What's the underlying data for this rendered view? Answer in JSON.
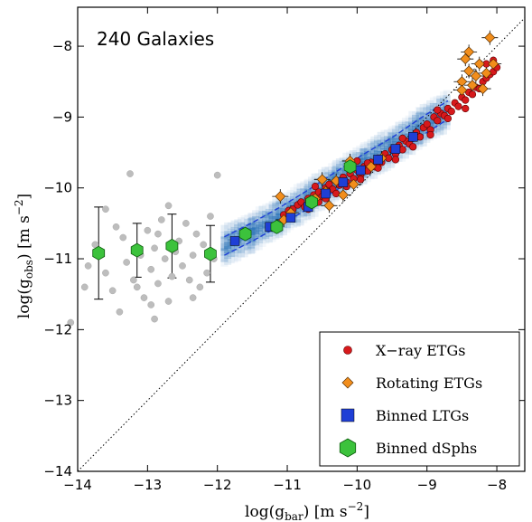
{
  "chart_data": {
    "type": "scatter",
    "annotation": "240 Galaxies",
    "xlabel": "log(g_bar) [m s^-2]",
    "ylabel": "log(g_obs) [m s^-2]",
    "xlim": [
      -14,
      -7.6
    ],
    "ylim": [
      -14,
      -7.45
    ],
    "x_ticks": [
      -14,
      -13,
      -12,
      -11,
      -10,
      -9,
      -8
    ],
    "y_ticks": [
      -14,
      -13,
      -12,
      -11,
      -10,
      -9,
      -8
    ],
    "x_tick_labels": [
      "−14",
      "−13",
      "−12",
      "−11",
      "−10",
      "−9",
      "−8"
    ],
    "y_tick_labels": [
      "−14",
      "−13",
      "−12",
      "−11",
      "−10",
      "−9",
      "−8"
    ],
    "legend_placement": "bottom-right",
    "one_to_one_line": true,
    "colors": {
      "xray": "#d7191c",
      "rotating": "#f28e1c",
      "binned_ltgs": "#1f3fd6",
      "dsphs": "#3cc23c",
      "individual_dsph": "#bdbdbd",
      "density": "#2d74b8"
    },
    "series": [
      {
        "name": "X−ray ETGs",
        "marker": "circle",
        "points": [
          [
            -11.05,
            -10.38
          ],
          [
            -10.98,
            -10.32
          ],
          [
            -10.92,
            -10.3
          ],
          [
            -10.85,
            -10.24
          ],
          [
            -10.8,
            -10.2
          ],
          [
            -10.75,
            -10.27
          ],
          [
            -10.7,
            -10.15
          ],
          [
            -10.62,
            -10.1
          ],
          [
            -10.55,
            -10.06
          ],
          [
            -10.5,
            -10.12
          ],
          [
            -10.45,
            -10.0
          ],
          [
            -10.4,
            -9.95
          ],
          [
            -10.35,
            -10.02
          ],
          [
            -10.3,
            -9.9
          ],
          [
            -10.25,
            -9.96
          ],
          [
            -10.2,
            -9.85
          ],
          [
            -10.15,
            -9.92
          ],
          [
            -10.1,
            -9.8
          ],
          [
            -10.05,
            -9.87
          ],
          [
            -10.0,
            -9.75
          ],
          [
            -9.95,
            -9.82
          ],
          [
            -9.9,
            -9.7
          ],
          [
            -9.85,
            -9.76
          ],
          [
            -9.8,
            -9.64
          ],
          [
            -9.75,
            -9.7
          ],
          [
            -9.7,
            -9.58
          ],
          [
            -9.65,
            -9.64
          ],
          [
            -9.6,
            -9.52
          ],
          [
            -9.55,
            -9.58
          ],
          [
            -9.5,
            -9.46
          ],
          [
            -9.45,
            -9.52
          ],
          [
            -9.4,
            -9.4
          ],
          [
            -9.35,
            -9.46
          ],
          [
            -9.3,
            -9.34
          ],
          [
            -9.25,
            -9.38
          ],
          [
            -9.2,
            -9.28
          ],
          [
            -9.15,
            -9.22
          ],
          [
            -9.1,
            -9.28
          ],
          [
            -9.05,
            -9.15
          ],
          [
            -9.0,
            -9.1
          ],
          [
            -8.95,
            -9.18
          ],
          [
            -8.9,
            -9.0
          ],
          [
            -8.85,
            -9.05
          ],
          [
            -8.8,
            -8.95
          ],
          [
            -8.75,
            -8.98
          ],
          [
            -8.7,
            -8.88
          ],
          [
            -8.65,
            -8.92
          ],
          [
            -8.6,
            -8.8
          ],
          [
            -8.55,
            -8.85
          ],
          [
            -8.5,
            -8.72
          ],
          [
            -8.45,
            -8.76
          ],
          [
            -8.4,
            -8.65
          ],
          [
            -8.35,
            -8.68
          ],
          [
            -8.3,
            -8.58
          ],
          [
            -8.25,
            -8.6
          ],
          [
            -8.2,
            -8.5
          ],
          [
            -8.15,
            -8.45
          ],
          [
            -8.1,
            -8.4
          ],
          [
            -8.05,
            -8.36
          ],
          [
            -8.0,
            -8.3
          ],
          [
            -10.55,
            -10.2
          ],
          [
            -10.3,
            -10.08
          ],
          [
            -10.15,
            -9.98
          ],
          [
            -9.95,
            -9.88
          ],
          [
            -9.7,
            -9.72
          ],
          [
            -9.45,
            -9.6
          ],
          [
            -9.2,
            -9.42
          ],
          [
            -8.95,
            -9.25
          ],
          [
            -8.7,
            -9.02
          ],
          [
            -8.45,
            -8.88
          ],
          [
            -10.7,
            -10.3
          ],
          [
            -10.45,
            -10.15
          ],
          [
            -9.85,
            -9.65
          ],
          [
            -9.35,
            -9.3
          ],
          [
            -8.85,
            -8.9
          ],
          [
            -8.35,
            -8.55
          ],
          [
            -8.15,
            -8.25
          ],
          [
            -8.05,
            -8.2
          ],
          [
            -10.6,
            -9.98
          ],
          [
            -10.0,
            -9.62
          ]
        ]
      },
      {
        "name": "Rotating ETGs",
        "marker": "diamond",
        "points": [
          [
            -11.1,
            -10.12
          ],
          [
            -11.05,
            -10.45
          ],
          [
            -10.95,
            -10.35
          ],
          [
            -10.6,
            -10.15
          ],
          [
            -10.5,
            -9.88
          ],
          [
            -10.45,
            -10.05
          ],
          [
            -10.4,
            -10.25
          ],
          [
            -10.3,
            -9.9
          ],
          [
            -10.2,
            -10.1
          ],
          [
            -10.1,
            -9.62
          ],
          [
            -10.05,
            -9.95
          ],
          [
            -9.8,
            -9.7
          ],
          [
            -9.65,
            -9.58
          ],
          [
            -8.5,
            -8.5
          ],
          [
            -8.4,
            -8.35
          ],
          [
            -8.35,
            -8.55
          ],
          [
            -8.3,
            -8.42
          ],
          [
            -8.25,
            -8.25
          ],
          [
            -8.4,
            -8.08
          ],
          [
            -8.15,
            -8.38
          ],
          [
            -8.05,
            -8.25
          ],
          [
            -8.1,
            -7.88
          ],
          [
            -8.5,
            -8.62
          ],
          [
            -8.2,
            -8.6
          ],
          [
            -8.45,
            -8.18
          ]
        ]
      },
      {
        "name": "Binned LTGs",
        "marker": "square",
        "points": [
          [
            -11.75,
            -10.75
          ],
          [
            -11.25,
            -10.55
          ],
          [
            -10.95,
            -10.42
          ],
          [
            -10.7,
            -10.27
          ],
          [
            -10.45,
            -10.08
          ],
          [
            -10.2,
            -9.92
          ],
          [
            -9.95,
            -9.75
          ],
          [
            -9.7,
            -9.6
          ],
          [
            -9.45,
            -9.45
          ],
          [
            -9.2,
            -9.28
          ]
        ]
      },
      {
        "name": "Binned dSphs",
        "marker": "hexagon",
        "points": [
          [
            -13.7,
            -10.92
          ],
          [
            -13.15,
            -10.88
          ],
          [
            -12.65,
            -10.82
          ],
          [
            -12.1,
            -10.93
          ],
          [
            -11.6,
            -10.65
          ],
          [
            -11.15,
            -10.55
          ],
          [
            -10.65,
            -10.2
          ],
          [
            -10.1,
            -9.7
          ]
        ],
        "y_error": [
          0.65,
          0.38,
          0.45,
          0.4,
          0,
          0,
          0,
          0
        ]
      }
    ],
    "individual_dsphs": [
      [
        -14.1,
        -11.9
      ],
      [
        -13.85,
        -11.1
      ],
      [
        -13.75,
        -10.8
      ],
      [
        -13.6,
        -11.2
      ],
      [
        -13.5,
        -11.45
      ],
      [
        -13.45,
        -10.55
      ],
      [
        -13.35,
        -10.7
      ],
      [
        -13.3,
        -11.05
      ],
      [
        -13.25,
        -9.8
      ],
      [
        -13.2,
        -11.3
      ],
      [
        -13.1,
        -10.95
      ],
      [
        -13.05,
        -11.55
      ],
      [
        -13.0,
        -10.6
      ],
      [
        -12.95,
        -11.15
      ],
      [
        -12.9,
        -10.85
      ],
      [
        -12.85,
        -11.35
      ],
      [
        -12.8,
        -10.45
      ],
      [
        -12.75,
        -11.0
      ],
      [
        -12.7,
        -11.6
      ],
      [
        -12.65,
        -11.25
      ],
      [
        -12.6,
        -10.9
      ],
      [
        -12.55,
        -10.75
      ],
      [
        -12.5,
        -11.1
      ],
      [
        -12.45,
        -10.5
      ],
      [
        -12.4,
        -11.3
      ],
      [
        -12.35,
        -10.95
      ],
      [
        -12.3,
        -10.65
      ],
      [
        -12.25,
        -11.4
      ],
      [
        -12.2,
        -10.8
      ],
      [
        -12.15,
        -11.2
      ],
      [
        -12.1,
        -10.4
      ],
      [
        -12.05,
        -11.0
      ],
      [
        -12.0,
        -9.82
      ],
      [
        -13.4,
        -11.75
      ],
      [
        -12.9,
        -11.85
      ],
      [
        -13.6,
        -10.3
      ],
      [
        -12.7,
        -10.25
      ],
      [
        -12.95,
        -11.65
      ],
      [
        -13.15,
        -11.4
      ],
      [
        -12.35,
        -11.55
      ],
      [
        -13.9,
        -11.4
      ],
      [
        -12.85,
        -10.65
      ]
    ],
    "density_band": [
      [
        -11.9,
        -10.82
      ],
      [
        -11.5,
        -10.62
      ],
      [
        -11.1,
        -10.4
      ],
      [
        -10.7,
        -10.16
      ],
      [
        -10.3,
        -9.9
      ],
      [
        -9.9,
        -9.65
      ],
      [
        -9.5,
        -9.42
      ],
      [
        -9.1,
        -9.15
      ],
      [
        -8.7,
        -8.9
      ]
    ]
  }
}
